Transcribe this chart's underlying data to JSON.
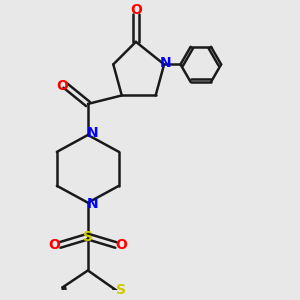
{
  "bg_color": "#e8e8e8",
  "bond_color": "#1a1a1a",
  "nitrogen_color": "#0000ff",
  "oxygen_color": "#ff0000",
  "sulfur_color": "#cccc00",
  "line_width": 1.8,
  "font_size": 10,
  "figsize": [
    3.0,
    3.0
  ],
  "dpi": 100,
  "xlim": [
    -1.0,
    6.0
  ],
  "ylim": [
    -5.5,
    4.5
  ]
}
